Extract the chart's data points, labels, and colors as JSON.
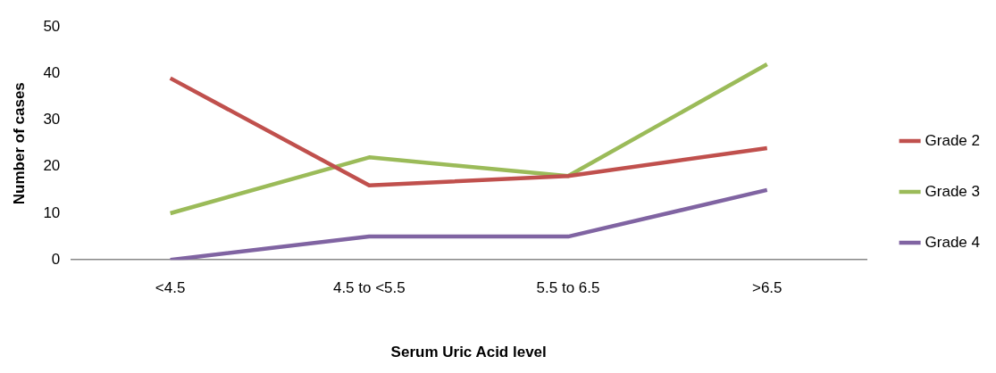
{
  "chart_data": {
    "type": "line",
    "xlabel": "Serum Uric Acid level",
    "ylabel": "Number of cases",
    "categories": [
      "<4.5",
      "4.5 to <5.5",
      "5.5 to 6.5",
      ">6.5"
    ],
    "series": [
      {
        "name": "Grade 2",
        "color": "#c0504d",
        "values": [
          39,
          16,
          18,
          24
        ]
      },
      {
        "name": "Grade 3",
        "color": "#9bbb59",
        "values": [
          10,
          22,
          18,
          42
        ]
      },
      {
        "name": "Grade 4",
        "color": "#8064a2",
        "values": [
          0,
          5,
          5,
          15
        ]
      }
    ],
    "ylim": [
      0,
      50
    ],
    "yticks": [
      0,
      10,
      20,
      30,
      40,
      50
    ],
    "grid": false,
    "legend": "right",
    "marker": "none",
    "line_style": "solid"
  }
}
